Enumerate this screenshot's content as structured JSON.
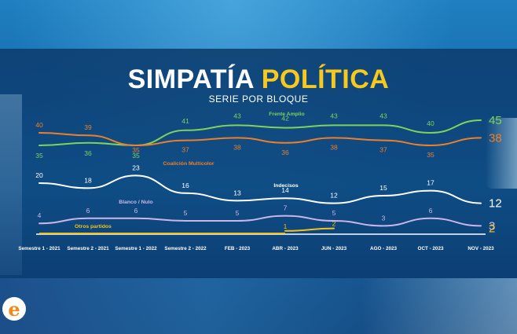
{
  "header": {
    "title_part1": "SIMPATÍA",
    "title_part2": "POLÍTICA",
    "subtitle": "SERIE POR BLOQUE"
  },
  "logo": {
    "letter": "e"
  },
  "chart_data": {
    "type": "line",
    "categories": [
      "Semestre 1 - 2021",
      "Semestre 2 - 2021",
      "Semestre 1 - 2022",
      "Semestre 2 - 2022",
      "FEB - 2023",
      "ABR - 2023",
      "JUN - 2023",
      "AGO - 2023",
      "OCT - 2023",
      "NOV - 2023"
    ],
    "ylim": [
      0,
      48
    ],
    "grid": false,
    "legend": "inline labels",
    "series": [
      {
        "name": "Frente Amplio",
        "color": "#7fd35a",
        "values": [
          35,
          36,
          35,
          41,
          43,
          42,
          43,
          43,
          40,
          45
        ]
      },
      {
        "name": "Coalición Multicolor",
        "color": "#ee7f2a",
        "values": [
          40,
          39,
          35,
          37,
          38,
          36,
          38,
          37,
          35,
          38
        ]
      },
      {
        "name": "Indecisos",
        "color": "#ffffff",
        "values": [
          20,
          18,
          23,
          16,
          13,
          14,
          12,
          15,
          17,
          12
        ]
      },
      {
        "name": "Blanco / Nulo",
        "color": "#cbb6ea",
        "values": [
          4,
          6,
          6,
          5,
          5,
          7,
          5,
          3,
          6,
          3
        ]
      },
      {
        "name": "Otros partidos",
        "color": "#f2c21b",
        "values": [
          null,
          null,
          null,
          null,
          null,
          1,
          2,
          null,
          null,
          2
        ]
      }
    ]
  }
}
